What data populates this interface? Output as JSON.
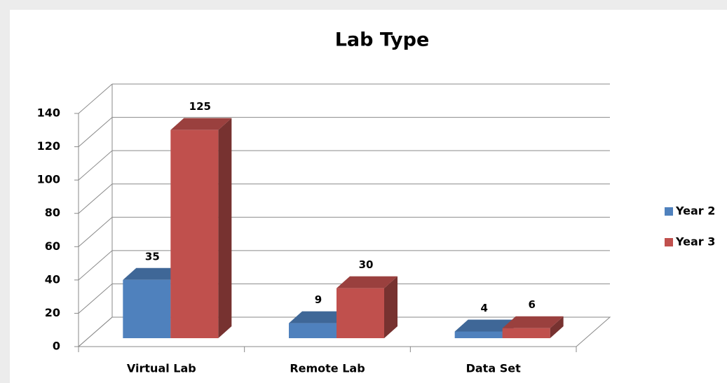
{
  "chart_data": {
    "type": "bar3d",
    "title": "Lab Type",
    "categories": [
      "Virtual Lab",
      "Remote Lab",
      "Data Set"
    ],
    "series": [
      {
        "name": "Year 2",
        "color": "#4f81bd",
        "values": [
          35,
          9,
          4
        ]
      },
      {
        "name": "Year 3",
        "color": "#c0504d",
        "values": [
          125,
          30,
          6
        ]
      }
    ],
    "ylim": [
      0,
      140
    ],
    "yticks": [
      0,
      20,
      40,
      60,
      80,
      100,
      120,
      140
    ],
    "grid": true,
    "legend": "right"
  }
}
